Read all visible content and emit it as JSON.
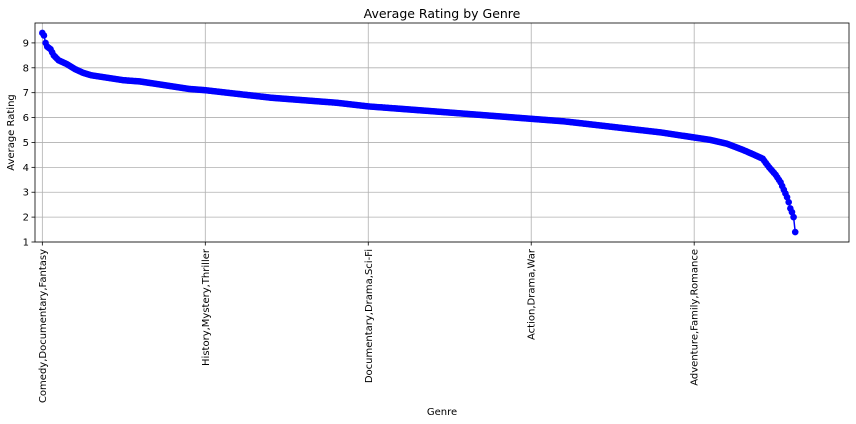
{
  "chart_data": {
    "type": "line",
    "title": "Average Rating by Genre",
    "xlabel": "Genre",
    "ylabel": "Average Rating",
    "ylim": [
      1,
      9.8
    ],
    "yticks": [
      1,
      2,
      3,
      4,
      5,
      6,
      7,
      8,
      9
    ],
    "xtick_labels": [
      {
        "index": 0,
        "label": "Comedy,Documentary,Fantasy"
      },
      {
        "index": 100,
        "label": "History,Mystery,Thriller"
      },
      {
        "index": 200,
        "label": "Documentary,Drama,Sci-Fi"
      },
      {
        "index": 300,
        "label": "Action,Drama,War"
      },
      {
        "index": 400,
        "label": "Adventure,Family,Romance"
      }
    ],
    "x_count": 463,
    "grid": true,
    "marker": "circle",
    "color": "#0000ff",
    "curve_anchors": [
      [
        0,
        9.4
      ],
      [
        1,
        9.3
      ],
      [
        2,
        9.0
      ],
      [
        3,
        8.85
      ],
      [
        5,
        8.75
      ],
      [
        7,
        8.5
      ],
      [
        10,
        8.3
      ],
      [
        15,
        8.15
      ],
      [
        20,
        7.95
      ],
      [
        25,
        7.8
      ],
      [
        30,
        7.7
      ],
      [
        40,
        7.6
      ],
      [
        50,
        7.5
      ],
      [
        60,
        7.45
      ],
      [
        70,
        7.35
      ],
      [
        80,
        7.25
      ],
      [
        90,
        7.15
      ],
      [
        100,
        7.1
      ],
      [
        120,
        6.95
      ],
      [
        140,
        6.8
      ],
      [
        160,
        6.7
      ],
      [
        180,
        6.6
      ],
      [
        200,
        6.45
      ],
      [
        220,
        6.35
      ],
      [
        240,
        6.25
      ],
      [
        260,
        6.15
      ],
      [
        280,
        6.05
      ],
      [
        300,
        5.95
      ],
      [
        320,
        5.85
      ],
      [
        340,
        5.7
      ],
      [
        360,
        5.55
      ],
      [
        380,
        5.4
      ],
      [
        400,
        5.2
      ],
      [
        410,
        5.1
      ],
      [
        420,
        4.95
      ],
      [
        430,
        4.7
      ],
      [
        437,
        4.5
      ],
      [
        442,
        4.35
      ],
      [
        446,
        4.0
      ],
      [
        450,
        3.7
      ],
      [
        453,
        3.4
      ],
      [
        455,
        3.1
      ],
      [
        457,
        2.8
      ],
      [
        458,
        2.6
      ],
      [
        459,
        2.35
      ],
      [
        460,
        2.2
      ],
      [
        461,
        2.0
      ],
      [
        462,
        1.4
      ]
    ]
  }
}
